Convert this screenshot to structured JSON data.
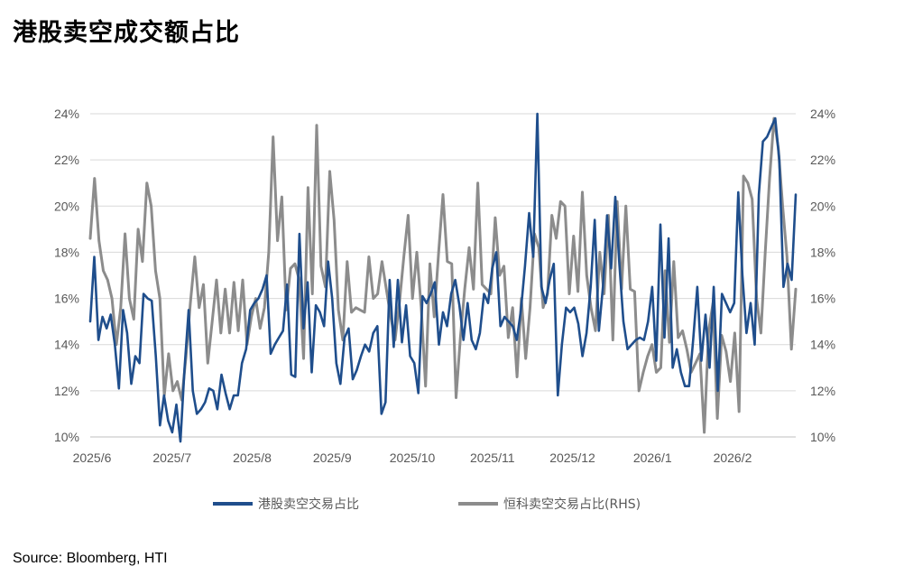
{
  "page": {
    "title": "港股卖空成交额占比",
    "source": "Source: Bloomberg, HTI"
  },
  "chart_data": {
    "type": "line",
    "x_tick_labels": [
      "2025/6",
      "2025/7",
      "2025/8",
      "2025/9",
      "2025/10",
      "2025/11",
      "2025/12",
      "2026/1",
      "2026/2"
    ],
    "y_left_ticks": [
      "10%",
      "12%",
      "14%",
      "16%",
      "18%",
      "20%",
      "22%",
      "24%"
    ],
    "y_right_ticks": [
      "10%",
      "12%",
      "14%",
      "16%",
      "18%",
      "20%",
      "22%",
      "24%"
    ],
    "ylim_left": [
      10,
      24
    ],
    "ylim_right": [
      10,
      24
    ],
    "grid": true,
    "legend_position": "bottom",
    "colors": {
      "hk": "#1F4E8C",
      "hstech": "#8C8C8C",
      "grid": "#D9D9D9"
    },
    "series": [
      {
        "name": "港股卖空交易占比",
        "axis": "left",
        "values": [
          15.0,
          17.8,
          14.2,
          15.2,
          14.7,
          15.3,
          14.0,
          12.1,
          15.5,
          14.5,
          12.3,
          13.5,
          13.2,
          16.2,
          16.0,
          15.9,
          13.5,
          10.5,
          11.8,
          10.7,
          10.2,
          11.4,
          9.8,
          13.0,
          15.5,
          12.0,
          11.0,
          11.2,
          11.5,
          12.1,
          12.0,
          11.2,
          12.7,
          11.9,
          11.2,
          11.8,
          11.8,
          13.2,
          13.8,
          15.5,
          15.8,
          16.0,
          16.4,
          17.0,
          13.6,
          14.0,
          14.3,
          14.6,
          16.6,
          12.7,
          12.6,
          18.8,
          14.7,
          16.7,
          12.8,
          15.7,
          15.4,
          14.8,
          17.6,
          16.0,
          13.2,
          12.3,
          14.3,
          14.7,
          12.5,
          12.9,
          13.5,
          14.0,
          13.7,
          14.5,
          14.8,
          11.0,
          11.5,
          16.8,
          13.9,
          16.8,
          14.1,
          15.7,
          13.5,
          13.2,
          11.9,
          16.1,
          15.8,
          16.2,
          16.7,
          14.0,
          15.4,
          14.8,
          16.2,
          16.8,
          15.7,
          14.2,
          15.8,
          14.2,
          13.8,
          14.5,
          16.2,
          15.8,
          17.3,
          18.0,
          14.8,
          15.2,
          15.0,
          14.8,
          14.2,
          15.5,
          17.4,
          19.7,
          17.8,
          24.0,
          16.5,
          15.8,
          16.8,
          17.5,
          11.8,
          14.0,
          15.6,
          15.4,
          15.6,
          14.9,
          13.5,
          14.5,
          16.5,
          19.4,
          14.6,
          16.5,
          19.6,
          17.3,
          20.4,
          17.5,
          15.0,
          13.8,
          14.0,
          14.2,
          14.3,
          14.2,
          15.0,
          16.5,
          13.3,
          19.2,
          14.3,
          18.6,
          13.0,
          13.8,
          12.8,
          12.2,
          12.2,
          14.2,
          16.5,
          13.3,
          15.3,
          13.0,
          16.5,
          12.0,
          16.2,
          15.8,
          15.4,
          15.8,
          20.6,
          17.0,
          14.5,
          15.8,
          14.0,
          20.5,
          22.8,
          23.0,
          23.4,
          23.8,
          22.0,
          16.5,
          17.5,
          16.8,
          20.5
        ]
      },
      {
        "name": "恒科卖空交易占比(RHS)",
        "axis": "right",
        "values": [
          18.6,
          21.2,
          18.5,
          17.2,
          16.8,
          16.0,
          14.0,
          15.6,
          18.8,
          16.0,
          15.1,
          19.0,
          17.6,
          21.0,
          20.0,
          17.2,
          16.0,
          11.8,
          13.6,
          12.0,
          12.4,
          11.6,
          13.5,
          15.8,
          17.8,
          15.6,
          16.6,
          13.2,
          15.0,
          16.8,
          14.5,
          16.4,
          14.5,
          16.7,
          14.6,
          16.8,
          14.0,
          15.2,
          16.0,
          14.7,
          15.6,
          18.0,
          23.0,
          18.5,
          20.4,
          15.5,
          17.3,
          17.5,
          16.8,
          13.4,
          20.8,
          16.2,
          23.5,
          17.4,
          16.5,
          21.5,
          19.4,
          15.5,
          14.2,
          17.6,
          15.4,
          15.6,
          15.5,
          15.4,
          17.8,
          16.0,
          16.2,
          17.6,
          16.4,
          15.2,
          14.2,
          15.8,
          17.8,
          19.6,
          16.0,
          18.0,
          15.6,
          12.2,
          17.5,
          15.2,
          18.0,
          20.5,
          17.6,
          17.5,
          11.7,
          14.3,
          16.4,
          18.2,
          16.4,
          21.0,
          16.6,
          16.4,
          16.2,
          19.5,
          17.0,
          17.4,
          14.3,
          15.6,
          12.6,
          16.0,
          13.4,
          15.6,
          18.8,
          18.2,
          15.6,
          16.2,
          19.6,
          18.6,
          20.2,
          20.0,
          16.2,
          18.7,
          16.3,
          20.6,
          17.0,
          15.6,
          14.6,
          18.0,
          16.2,
          19.6,
          14.2,
          20.2,
          16.4,
          20.0,
          16.4,
          16.3,
          12.0,
          12.8,
          13.5,
          14.0,
          12.8,
          13.0,
          17.2,
          14.1,
          17.6,
          14.3,
          14.6,
          13.8,
          12.8,
          13.2,
          13.6,
          10.2,
          14.6,
          15.8,
          10.8,
          14.4,
          13.7,
          12.4,
          14.5,
          11.1,
          21.3,
          21.0,
          20.3,
          16.0,
          14.5,
          18.0,
          21.2,
          23.8,
          22.5,
          20.0,
          17.8,
          13.8,
          16.4
        ]
      }
    ]
  }
}
